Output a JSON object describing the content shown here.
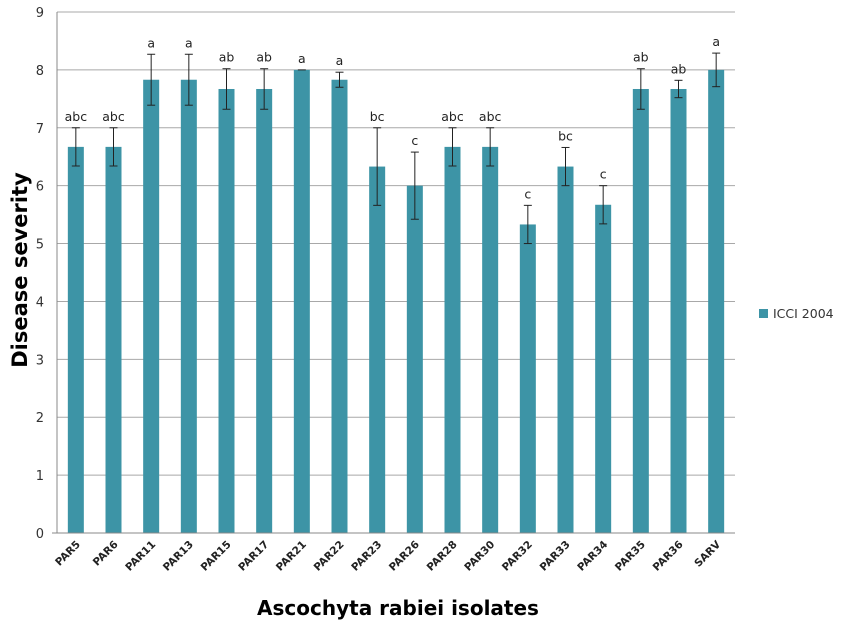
{
  "chart_data": {
    "type": "bar",
    "xlabel": "Ascochyta rabiei isolates",
    "ylabel": "Disease severity",
    "ylim": [
      0,
      9
    ],
    "yticks": [
      0,
      1,
      2,
      3,
      4,
      5,
      6,
      7,
      8,
      9
    ],
    "grid": "horizontal",
    "legend_position": "right",
    "categories": [
      "PAR5",
      "PAR6",
      "PAR11",
      "PAR13",
      "PAR15",
      "PAR17",
      "PAR21",
      "PAR22",
      "PAR23",
      "PAR26",
      "PAR28",
      "PAR30",
      "PAR32",
      "PAR33",
      "PAR34",
      "PAR35",
      "PAR36",
      "SARV"
    ],
    "series": [
      {
        "name": "ICCI 2004",
        "color": "#3d94a6",
        "values": [
          6.67,
          6.67,
          7.83,
          7.83,
          7.67,
          7.67,
          8.0,
          7.83,
          6.33,
          6.0,
          6.67,
          6.67,
          5.33,
          6.33,
          5.67,
          7.67,
          7.67,
          8.0
        ],
        "errors": [
          0.33,
          0.33,
          0.44,
          0.44,
          0.35,
          0.35,
          0.0,
          0.13,
          0.67,
          0.58,
          0.33,
          0.33,
          0.33,
          0.33,
          0.33,
          0.35,
          0.15,
          0.29
        ],
        "significance_labels": [
          "abc",
          "abc",
          "a",
          "a",
          "ab",
          "ab",
          "a",
          "a",
          "bc",
          "c",
          "abc",
          "abc",
          "c",
          "bc",
          "c",
          "ab",
          "ab",
          "a"
        ]
      }
    ]
  }
}
